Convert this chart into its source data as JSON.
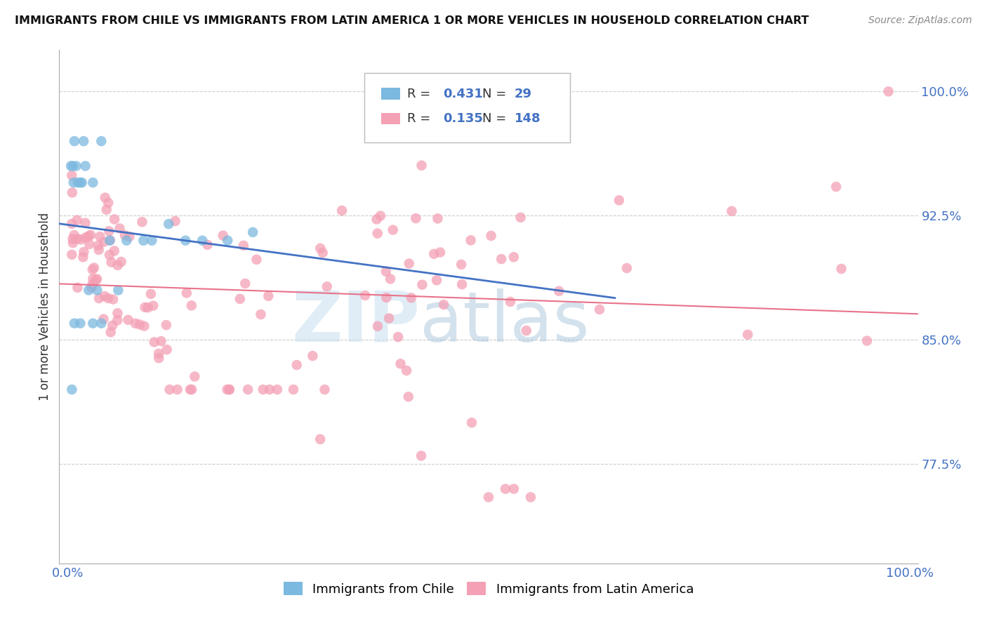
{
  "title": "IMMIGRANTS FROM CHILE VS IMMIGRANTS FROM LATIN AMERICA 1 OR MORE VEHICLES IN HOUSEHOLD CORRELATION CHART",
  "source": "Source: ZipAtlas.com",
  "ylabel": "1 or more Vehicles in Household",
  "blue_R": 0.431,
  "blue_N": 29,
  "pink_R": 0.135,
  "pink_N": 148,
  "xlim": [
    -0.01,
    1.01
  ],
  "ylim": [
    0.715,
    1.025
  ],
  "yticks": [
    0.775,
    0.85,
    0.925,
    1.0
  ],
  "ytick_labels": [
    "77.5%",
    "85.0%",
    "92.5%",
    "100.0%"
  ],
  "xtick_labels": [
    "0.0%",
    "100.0%"
  ],
  "xticks": [
    0.0,
    1.0
  ],
  "blue_color": "#7cb9e0",
  "pink_color": "#f4a0b5",
  "blue_line_color": "#4472c4",
  "pink_line_color": "#e8728a",
  "background_color": "#ffffff",
  "grid_color": "#cccccc",
  "watermark_zip": "ZIP",
  "watermark_atlas": "atlas",
  "legend_label_blue": "Immigrants from Chile",
  "legend_label_pink": "Immigrants from Latin America"
}
